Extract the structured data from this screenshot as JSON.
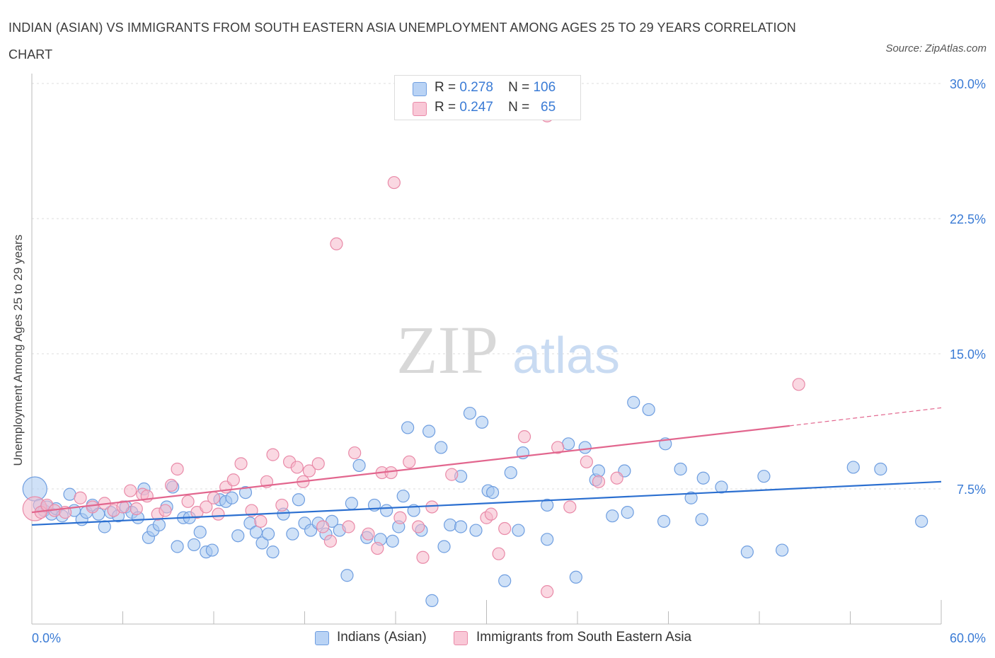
{
  "title": "INDIAN (ASIAN) VS IMMIGRANTS FROM SOUTH EASTERN ASIA UNEMPLOYMENT AMONG AGES 25 TO 29 YEARS CORRELATION CHART",
  "source": "Source: ZipAtlas.com",
  "watermark": {
    "zip": "ZIP",
    "atlas": "atlas"
  },
  "colors": {
    "blue_fill": "#a8c8f0",
    "blue_stroke": "#6f9ee0",
    "blue_line": "#2b6fd0",
    "pink_fill": "#f6b8cb",
    "pink_stroke": "#e98aa8",
    "pink_line": "#e2668e",
    "axis_text": "#3a7bd5",
    "grid": "#dddddd"
  },
  "legend_top": [
    {
      "r_label": "R =",
      "r_value": "0.278",
      "n_label": "N =",
      "n_value": "106"
    },
    {
      "r_label": "R =",
      "r_value": "0.247",
      "n_label": "N =",
      "n_value": "65"
    }
  ],
  "chart_data": {
    "type": "scatter",
    "title": "INDIAN (ASIAN) VS IMMIGRANTS FROM SOUTH EASTERN ASIA UNEMPLOYMENT AMONG AGES 25 TO 29 YEARS CORRELATION CHART",
    "xlabel": "",
    "ylabel": "Unemployment Among Ages 25 to 29 years",
    "xlim": [
      0,
      60
    ],
    "ylim": [
      0,
      30
    ],
    "x_tick_labels": [
      "0.0%",
      "60.0%"
    ],
    "y_tick_labels": [
      "7.5%",
      "15.0%",
      "22.5%",
      "30.0%"
    ],
    "y_ticks": [
      7.5,
      15.0,
      22.5,
      30.0
    ],
    "grid": true,
    "legend_position": "top-center and bottom",
    "series": [
      {
        "name": "Indians (Asian)",
        "r": 0.278,
        "n": 106,
        "trend": {
          "x": [
            0,
            60
          ],
          "y": [
            5.5,
            7.9
          ]
        },
        "points": [
          {
            "x": 0.2,
            "y": 7.5,
            "big": true
          },
          {
            "x": 0.5,
            "y": 6.6
          },
          {
            "x": 0.8,
            "y": 6.3
          },
          {
            "x": 1.0,
            "y": 6.5
          },
          {
            "x": 1.3,
            "y": 6.1
          },
          {
            "x": 1.6,
            "y": 6.4
          },
          {
            "x": 2.0,
            "y": 6.0
          },
          {
            "x": 2.5,
            "y": 7.2
          },
          {
            "x": 2.8,
            "y": 6.3
          },
          {
            "x": 3.3,
            "y": 5.8
          },
          {
            "x": 3.6,
            "y": 6.2
          },
          {
            "x": 4.0,
            "y": 6.6
          },
          {
            "x": 4.4,
            "y": 6.1
          },
          {
            "x": 4.8,
            "y": 5.4
          },
          {
            "x": 5.2,
            "y": 6.2
          },
          {
            "x": 5.7,
            "y": 6.0
          },
          {
            "x": 6.2,
            "y": 6.5
          },
          {
            "x": 6.6,
            "y": 6.2
          },
          {
            "x": 7.0,
            "y": 5.9
          },
          {
            "x": 7.4,
            "y": 7.5
          },
          {
            "x": 7.7,
            "y": 4.8
          },
          {
            "x": 8.0,
            "y": 5.2
          },
          {
            "x": 8.4,
            "y": 5.5
          },
          {
            "x": 8.9,
            "y": 6.5
          },
          {
            "x": 9.3,
            "y": 7.6
          },
          {
            "x": 9.6,
            "y": 4.3
          },
          {
            "x": 10.0,
            "y": 5.9
          },
          {
            "x": 10.4,
            "y": 5.9
          },
          {
            "x": 10.7,
            "y": 4.4
          },
          {
            "x": 11.1,
            "y": 5.1
          },
          {
            "x": 11.5,
            "y": 4.0
          },
          {
            "x": 11.9,
            "y": 4.1
          },
          {
            "x": 12.4,
            "y": 6.9
          },
          {
            "x": 12.8,
            "y": 6.8
          },
          {
            "x": 13.2,
            "y": 7.0
          },
          {
            "x": 13.6,
            "y": 4.9
          },
          {
            "x": 14.1,
            "y": 7.3
          },
          {
            "x": 14.4,
            "y": 5.6
          },
          {
            "x": 14.8,
            "y": 5.1
          },
          {
            "x": 15.2,
            "y": 4.5
          },
          {
            "x": 15.6,
            "y": 5.0
          },
          {
            "x": 15.9,
            "y": 4.0
          },
          {
            "x": 16.6,
            "y": 6.1
          },
          {
            "x": 17.2,
            "y": 5.0
          },
          {
            "x": 17.6,
            "y": 6.9
          },
          {
            "x": 18.0,
            "y": 5.6
          },
          {
            "x": 18.4,
            "y": 5.2
          },
          {
            "x": 18.9,
            "y": 5.6
          },
          {
            "x": 19.4,
            "y": 5.0
          },
          {
            "x": 19.8,
            "y": 5.7
          },
          {
            "x": 20.3,
            "y": 5.2
          },
          {
            "x": 20.8,
            "y": 2.7
          },
          {
            "x": 21.1,
            "y": 6.7
          },
          {
            "x": 21.6,
            "y": 8.8
          },
          {
            "x": 22.1,
            "y": 4.8
          },
          {
            "x": 22.6,
            "y": 6.6
          },
          {
            "x": 23.0,
            "y": 4.7
          },
          {
            "x": 23.4,
            "y": 6.3
          },
          {
            "x": 23.8,
            "y": 4.6
          },
          {
            "x": 24.2,
            "y": 5.4
          },
          {
            "x": 24.5,
            "y": 7.1
          },
          {
            "x": 24.8,
            "y": 10.9
          },
          {
            "x": 25.2,
            "y": 6.3
          },
          {
            "x": 25.7,
            "y": 5.2
          },
          {
            "x": 26.2,
            "y": 10.7
          },
          {
            "x": 26.4,
            "y": 1.3
          },
          {
            "x": 27.0,
            "y": 9.8
          },
          {
            "x": 27.2,
            "y": 4.3
          },
          {
            "x": 27.6,
            "y": 5.5
          },
          {
            "x": 28.3,
            "y": 8.2
          },
          {
            "x": 28.3,
            "y": 5.4
          },
          {
            "x": 28.9,
            "y": 11.7
          },
          {
            "x": 29.3,
            "y": 5.2
          },
          {
            "x": 29.7,
            "y": 11.2
          },
          {
            "x": 30.1,
            "y": 7.4
          },
          {
            "x": 30.4,
            "y": 7.3
          },
          {
            "x": 31.2,
            "y": 2.4
          },
          {
            "x": 31.6,
            "y": 8.4
          },
          {
            "x": 32.1,
            "y": 5.2
          },
          {
            "x": 32.4,
            "y": 9.5
          },
          {
            "x": 34.0,
            "y": 6.6
          },
          {
            "x": 34.0,
            "y": 4.7
          },
          {
            "x": 35.4,
            "y": 10.0
          },
          {
            "x": 35.9,
            "y": 2.6
          },
          {
            "x": 36.5,
            "y": 9.8
          },
          {
            "x": 37.2,
            "y": 8.0
          },
          {
            "x": 37.4,
            "y": 8.5
          },
          {
            "x": 38.3,
            "y": 6.0
          },
          {
            "x": 39.1,
            "y": 8.5
          },
          {
            "x": 39.3,
            "y": 6.2
          },
          {
            "x": 39.7,
            "y": 12.3
          },
          {
            "x": 40.7,
            "y": 11.9
          },
          {
            "x": 41.7,
            "y": 5.7
          },
          {
            "x": 41.8,
            "y": 10.0
          },
          {
            "x": 42.8,
            "y": 8.6
          },
          {
            "x": 43.5,
            "y": 7.0
          },
          {
            "x": 44.2,
            "y": 5.8
          },
          {
            "x": 44.3,
            "y": 8.1
          },
          {
            "x": 45.5,
            "y": 7.6
          },
          {
            "x": 47.2,
            "y": 4.0
          },
          {
            "x": 48.3,
            "y": 8.2
          },
          {
            "x": 49.5,
            "y": 4.1
          },
          {
            "x": 54.2,
            "y": 8.7
          },
          {
            "x": 56.0,
            "y": 8.6
          },
          {
            "x": 58.7,
            "y": 5.7
          }
        ]
      },
      {
        "name": "Immigrants from South Eastern Asia",
        "r": 0.247,
        "n": 65,
        "trend": {
          "x": [
            0,
            50
          ],
          "y": [
            6.2,
            11.0
          ]
        },
        "trend_dashed": {
          "x": [
            50,
            60
          ],
          "y": [
            11.0,
            12.0
          ]
        },
        "points": [
          {
            "x": 0.2,
            "y": 6.4,
            "big": true
          },
          {
            "x": 0.6,
            "y": 6.2
          },
          {
            "x": 1.0,
            "y": 6.6
          },
          {
            "x": 1.5,
            "y": 6.3
          },
          {
            "x": 2.2,
            "y": 6.2
          },
          {
            "x": 3.2,
            "y": 7.0
          },
          {
            "x": 4.0,
            "y": 6.5
          },
          {
            "x": 4.8,
            "y": 6.7
          },
          {
            "x": 5.4,
            "y": 6.3
          },
          {
            "x": 6.0,
            "y": 6.5
          },
          {
            "x": 6.5,
            "y": 7.4
          },
          {
            "x": 6.9,
            "y": 6.4
          },
          {
            "x": 7.3,
            "y": 7.2
          },
          {
            "x": 7.6,
            "y": 7.1
          },
          {
            "x": 8.3,
            "y": 6.1
          },
          {
            "x": 8.8,
            "y": 6.3
          },
          {
            "x": 9.2,
            "y": 7.7
          },
          {
            "x": 9.6,
            "y": 8.6
          },
          {
            "x": 10.3,
            "y": 6.8
          },
          {
            "x": 10.9,
            "y": 6.2
          },
          {
            "x": 11.5,
            "y": 6.5
          },
          {
            "x": 12.0,
            "y": 7.0
          },
          {
            "x": 12.3,
            "y": 6.1
          },
          {
            "x": 12.8,
            "y": 7.6
          },
          {
            "x": 13.3,
            "y": 8.0
          },
          {
            "x": 13.8,
            "y": 8.9
          },
          {
            "x": 14.5,
            "y": 6.3
          },
          {
            "x": 15.1,
            "y": 5.7
          },
          {
            "x": 15.5,
            "y": 7.9
          },
          {
            "x": 15.9,
            "y": 9.4
          },
          {
            "x": 16.5,
            "y": 6.6
          },
          {
            "x": 17.0,
            "y": 9.0
          },
          {
            "x": 17.5,
            "y": 8.7
          },
          {
            "x": 17.9,
            "y": 7.9
          },
          {
            "x": 18.3,
            "y": 8.5
          },
          {
            "x": 18.9,
            "y": 8.9
          },
          {
            "x": 19.2,
            "y": 5.4
          },
          {
            "x": 19.7,
            "y": 4.6
          },
          {
            "x": 20.1,
            "y": 21.1
          },
          {
            "x": 20.9,
            "y": 5.4
          },
          {
            "x": 21.3,
            "y": 9.5
          },
          {
            "x": 22.2,
            "y": 5.0
          },
          {
            "x": 22.8,
            "y": 4.2
          },
          {
            "x": 23.1,
            "y": 8.4
          },
          {
            "x": 23.7,
            "y": 8.4
          },
          {
            "x": 23.9,
            "y": 24.5
          },
          {
            "x": 24.3,
            "y": 5.9
          },
          {
            "x": 24.9,
            "y": 9.0
          },
          {
            "x": 25.5,
            "y": 5.4
          },
          {
            "x": 25.8,
            "y": 3.7
          },
          {
            "x": 26.4,
            "y": 6.5
          },
          {
            "x": 27.7,
            "y": 8.3
          },
          {
            "x": 30.0,
            "y": 5.9
          },
          {
            "x": 30.3,
            "y": 6.1
          },
          {
            "x": 30.8,
            "y": 3.9
          },
          {
            "x": 31.2,
            "y": 5.3
          },
          {
            "x": 32.5,
            "y": 10.4
          },
          {
            "x": 34.0,
            "y": 28.2
          },
          {
            "x": 34.0,
            "y": 1.8
          },
          {
            "x": 34.7,
            "y": 9.8
          },
          {
            "x": 35.5,
            "y": 6.5
          },
          {
            "x": 36.6,
            "y": 9.0
          },
          {
            "x": 37.4,
            "y": 7.9
          },
          {
            "x": 38.6,
            "y": 8.1
          },
          {
            "x": 50.6,
            "y": 13.3
          }
        ]
      }
    ]
  }
}
